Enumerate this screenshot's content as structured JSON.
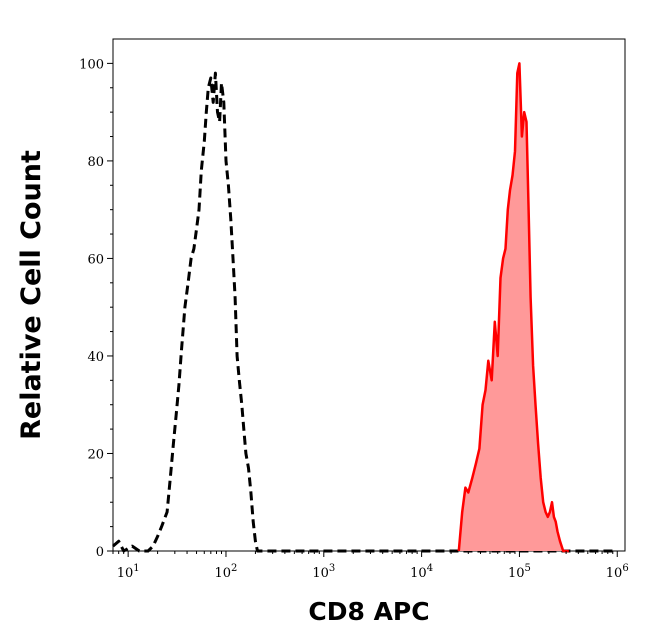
{
  "chart_data": {
    "type": "area",
    "xlabel": "CD8 APC",
    "ylabel": "Relative Cell Count",
    "xscale": "log",
    "xlim": [
      7,
      1200000
    ],
    "ylim": [
      0,
      105
    ],
    "x_ticks": [
      {
        "base": "10",
        "exp": "1",
        "value": 10
      },
      {
        "base": "10",
        "exp": "2",
        "value": 100
      },
      {
        "base": "10",
        "exp": "3",
        "value": 1000
      },
      {
        "base": "10",
        "exp": "4",
        "value": 10000
      },
      {
        "base": "10",
        "exp": "5",
        "value": 100000
      },
      {
        "base": "10",
        "exp": "6",
        "value": 1000000
      }
    ],
    "y_ticks": [
      "0",
      "20",
      "40",
      "60",
      "80",
      "100"
    ],
    "grid": false,
    "colors": {
      "isotype": "#000000",
      "stained_line": "#ff0000",
      "stained_fill": "#ff9999"
    },
    "series": [
      {
        "style": "dashed",
        "color": "#000000",
        "fill": false,
        "x": [
          7,
          8,
          9,
          11,
          13,
          16,
          18,
          20,
          22,
          25,
          27,
          29,
          31,
          33,
          35,
          38,
          41,
          44,
          47,
          50,
          53,
          56,
          60,
          63,
          66,
          70,
          74,
          78,
          82,
          86,
          90,
          95,
          100,
          106,
          112,
          118,
          124,
          130,
          137,
          145,
          152,
          160,
          170,
          180,
          190,
          200,
          210,
          1000000
        ],
        "y": [
          1,
          2,
          0,
          1,
          0,
          0,
          1,
          3,
          5,
          8,
          15,
          22,
          28,
          34,
          41,
          50,
          55,
          60,
          62,
          66,
          70,
          78,
          84,
          90,
          95,
          97,
          92,
          98,
          90,
          88,
          96,
          92,
          80,
          75,
          68,
          60,
          52,
          40,
          35,
          30,
          25,
          20,
          17,
          12,
          6,
          2,
          0,
          0
        ]
      },
      {
        "style": "solid",
        "color": "#ff0000",
        "fill": true,
        "x": [
          24000,
          26000,
          28000,
          30000,
          33000,
          36000,
          39000,
          42000,
          45000,
          48000,
          52000,
          56000,
          60000,
          64000,
          68000,
          72000,
          76000,
          80000,
          85000,
          90000,
          95000,
          100000,
          106000,
          112000,
          118000,
          124000,
          130000,
          138000,
          146000,
          155000,
          165000,
          175000,
          185000,
          195000,
          205000,
          215000,
          225000,
          235000,
          245000,
          260000,
          280000,
          300000,
          320000
        ],
        "y": [
          0,
          8,
          13,
          12,
          15,
          18,
          21,
          30,
          33,
          39,
          35,
          47,
          40,
          56,
          60,
          62,
          70,
          74,
          77,
          82,
          98,
          100,
          85,
          90,
          88,
          70,
          52,
          38,
          30,
          22,
          15,
          10,
          8,
          7,
          8,
          10,
          7,
          6,
          4,
          2,
          0,
          0,
          0
        ]
      }
    ]
  }
}
